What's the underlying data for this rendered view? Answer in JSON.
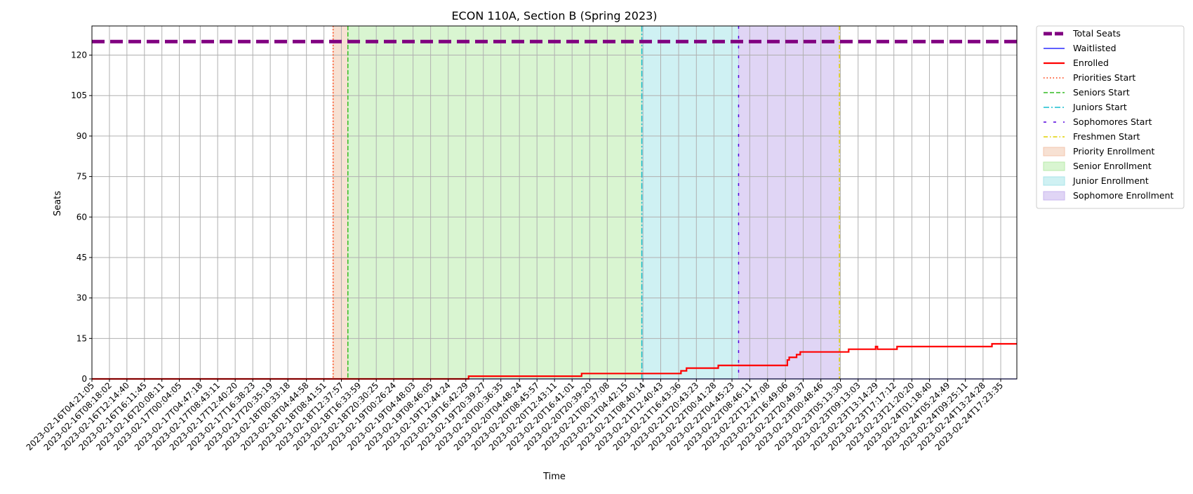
{
  "chart_data": {
    "type": "line",
    "title": "ECON 110A, Section B (Spring 2023)",
    "xlabel": "Time",
    "ylabel": "Seats",
    "ylim": [
      0,
      130.8
    ],
    "yticks": [
      0,
      15,
      30,
      45,
      60,
      75,
      90,
      105,
      120
    ],
    "grid": true,
    "legend_position": "outside-right",
    "xlim": [
      "2023-02-16T04:21:05",
      "2023-02-24T21:02:00"
    ],
    "xtick_labels": [
      "2023-02-16T04:21:05",
      "2023-02-16T08:18:02",
      "2023-02-16T12:14:40",
      "2023-02-16T16:11:45",
      "2023-02-16T20:08:11",
      "2023-02-17T00:04:05",
      "2023-02-17T04:47:18",
      "2023-02-17T08:43:11",
      "2023-02-17T12:40:20",
      "2023-02-17T16:38:23",
      "2023-02-17T20:35:19",
      "2023-02-18T00:33:18",
      "2023-02-18T04:44:58",
      "2023-02-18T08:41:51",
      "2023-02-18T12:37:57",
      "2023-02-18T16:33:59",
      "2023-02-18T20:30:25",
      "2023-02-19T00:26:24",
      "2023-02-19T04:48:03",
      "2023-02-19T08:46:05",
      "2023-02-19T12:44:24",
      "2023-02-19T16:42:29",
      "2023-02-19T20:39:27",
      "2023-02-20T00:36:35",
      "2023-02-20T04:48:24",
      "2023-02-20T08:45:57",
      "2023-02-20T12:43:11",
      "2023-02-20T16:41:01",
      "2023-02-20T20:39:20",
      "2023-02-21T00:37:08",
      "2023-02-21T04:42:15",
      "2023-02-21T08:40:14",
      "2023-02-21T12:40:43",
      "2023-02-21T16:43:36",
      "2023-02-21T20:43:23",
      "2023-02-22T00:41:28",
      "2023-02-22T04:45:23",
      "2023-02-22T08:46:11",
      "2023-02-22T12:47:08",
      "2023-02-22T16:49:06",
      "2023-02-22T20:49:37",
      "2023-02-23T00:48:46",
      "2023-02-23T05:13:30",
      "2023-02-23T09:13:03",
      "2023-02-23T13:14:29",
      "2023-02-23T17:17:12",
      "2023-02-23T21:20:20",
      "2023-02-24T01:18:40",
      "2023-02-24T05:24:49",
      "2023-02-24T09:25:11",
      "2023-02-24T13:24:28",
      "2023-02-24T17:23:35"
    ],
    "series": [
      {
        "name": "Total Seats",
        "color": "#800080",
        "style": "dashed-thick",
        "points": [
          [
            "2023-02-16T04:21:05",
            125
          ],
          [
            "2023-02-24T21:02:00",
            125
          ]
        ]
      },
      {
        "name": "Waitlisted",
        "color": "#0000ff",
        "style": "solid",
        "points": [
          [
            "2023-02-16T04:21:05",
            0
          ],
          [
            "2023-02-24T21:02:00",
            0
          ]
        ]
      },
      {
        "name": "Enrolled",
        "color": "#ff0000",
        "style": "solid-thick",
        "step": true,
        "points": [
          [
            "2023-02-16T04:21:05",
            0
          ],
          [
            "2023-02-19T17:20:00",
            1
          ],
          [
            "2023-02-20T18:50:00",
            2
          ],
          [
            "2023-02-21T17:15:00",
            3
          ],
          [
            "2023-02-21T18:30:00",
            4
          ],
          [
            "2023-02-22T01:40:00",
            5
          ],
          [
            "2023-02-22T17:15:00",
            7
          ],
          [
            "2023-02-22T17:40:00",
            8
          ],
          [
            "2023-02-22T19:20:00",
            9
          ],
          [
            "2023-02-22T20:10:00",
            10
          ],
          [
            "2023-02-23T07:05:00",
            11
          ],
          [
            "2023-02-23T13:10:00",
            12
          ],
          [
            "2023-02-23T13:35:00",
            11
          ],
          [
            "2023-02-23T18:00:00",
            12
          ],
          [
            "2023-02-24T15:25:00",
            13
          ],
          [
            "2023-02-24T21:02:00",
            13
          ]
        ]
      }
    ],
    "markers": [
      {
        "name": "Priorities Start",
        "time": "2023-02-18T10:46:00",
        "color": "#ff3300",
        "dash": "dotted"
      },
      {
        "name": "Seniors Start",
        "time": "2023-02-18T14:06:00",
        "color": "#33bb22",
        "dash": "dashed"
      },
      {
        "name": "Juniors Start",
        "time": "2023-02-21T08:25:00",
        "color": "#17becf",
        "dash": "dashdot"
      },
      {
        "name": "Sophomores Start",
        "time": "2023-02-22T06:15:00",
        "color": "#5500dd",
        "dash": "loose"
      },
      {
        "name": "Freshmen Start",
        "time": "2023-02-23T05:00:00",
        "color": "#e0d000",
        "dash": "dashdot-thin"
      }
    ],
    "spans": [
      {
        "name": "Priority Enrollment",
        "start": "2023-02-18T10:46:00",
        "end": "2023-02-18T14:06:00",
        "color": "#f7e1d3",
        "border": "#f3c5ad"
      },
      {
        "name": "Senior Enrollment",
        "start": "2023-02-18T14:06:00",
        "end": "2023-02-21T08:25:00",
        "color": "#d9f5d1",
        "border": "#b8eaaa"
      },
      {
        "name": "Junior Enrollment",
        "start": "2023-02-21T08:25:00",
        "end": "2023-02-22T06:15:00",
        "color": "#cff1f3",
        "border": "#a8e4ea"
      },
      {
        "name": "Sophomore Enrollment",
        "start": "2023-02-22T06:15:00",
        "end": "2023-02-23T05:00:00",
        "color": "#e0d5f5",
        "border": "#c9b6ee"
      }
    ]
  }
}
